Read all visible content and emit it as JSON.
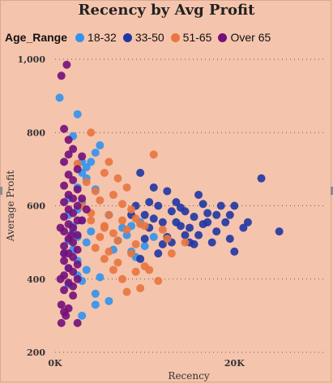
{
  "chart_data": {
    "type": "scatter",
    "title": "Recency by Avg Profit",
    "xlabel": "Recency",
    "ylabel": "Average Profit",
    "xlim": [
      0,
      30000
    ],
    "ylim": [
      200,
      1000
    ],
    "x_ticks": [
      {
        "value": 0,
        "label": "0K"
      },
      {
        "value": 20000,
        "label": "20K"
      }
    ],
    "y_ticks": [
      {
        "value": 200,
        "label": "200"
      },
      {
        "value": 400,
        "label": "400"
      },
      {
        "value": 600,
        "label": "600"
      },
      {
        "value": 800,
        "label": "800"
      },
      {
        "value": 1000,
        "label": "1,000"
      }
    ],
    "grid": "horizontal dotted",
    "legend_title": "Age_Range",
    "legend_position": "top-left",
    "series": [
      {
        "name": "18-32",
        "color": "#2f93f0",
        "points": [
          [
            500,
            895
          ],
          [
            2500,
            850
          ],
          [
            2000,
            790
          ],
          [
            5000,
            765
          ],
          [
            4500,
            745
          ],
          [
            4000,
            720
          ],
          [
            3500,
            705
          ],
          [
            3000,
            690
          ],
          [
            3500,
            675
          ],
          [
            2500,
            650
          ],
          [
            4500,
            645
          ],
          [
            1500,
            620
          ],
          [
            3000,
            610
          ],
          [
            2500,
            590
          ],
          [
            1500,
            575
          ],
          [
            3000,
            560
          ],
          [
            2000,
            545
          ],
          [
            4000,
            530
          ],
          [
            2500,
            515
          ],
          [
            3500,
            500
          ],
          [
            2000,
            480
          ],
          [
            1000,
            470
          ],
          [
            2500,
            450
          ],
          [
            1500,
            430
          ],
          [
            3500,
            425
          ],
          [
            2500,
            410
          ],
          [
            3000,
            395
          ],
          [
            1500,
            385
          ],
          [
            4500,
            360
          ],
          [
            5000,
            405
          ],
          [
            3000,
            300
          ],
          [
            4500,
            330
          ],
          [
            6000,
            340
          ],
          [
            7500,
            540
          ],
          [
            8500,
            545
          ],
          [
            9500,
            555
          ],
          [
            8000,
            520
          ],
          [
            7000,
            505
          ],
          [
            6500,
            480
          ],
          [
            8500,
            475
          ],
          [
            10000,
            490
          ],
          [
            9000,
            460
          ],
          [
            11000,
            515
          ],
          [
            6000,
            575
          ],
          [
            3000,
            720
          ],
          [
            2000,
            530
          ],
          [
            1500,
            505
          ]
        ]
      },
      {
        "name": "33-50",
        "color": "#1f36a3",
        "points": [
          [
            23000,
            675
          ],
          [
            25000,
            530
          ],
          [
            21500,
            555
          ],
          [
            20000,
            600
          ],
          [
            21000,
            540
          ],
          [
            19500,
            575
          ],
          [
            18500,
            600
          ],
          [
            19500,
            510
          ],
          [
            20000,
            475
          ],
          [
            18000,
            530
          ],
          [
            17000,
            580
          ],
          [
            16500,
            605
          ],
          [
            16000,
            630
          ],
          [
            15500,
            570
          ],
          [
            15000,
            540
          ],
          [
            14500,
            520
          ],
          [
            14000,
            595
          ],
          [
            13500,
            610
          ],
          [
            13000,
            585
          ],
          [
            12500,
            640
          ],
          [
            12000,
            555
          ],
          [
            11500,
            600
          ],
          [
            11000,
            565
          ],
          [
            10500,
            540
          ],
          [
            10000,
            510
          ],
          [
            9500,
            690
          ],
          [
            10500,
            610
          ],
          [
            12000,
            495
          ],
          [
            13000,
            500
          ],
          [
            14000,
            545
          ],
          [
            15000,
            500
          ],
          [
            16000,
            520
          ],
          [
            17000,
            555
          ],
          [
            18000,
            575
          ],
          [
            11000,
            650
          ],
          [
            10000,
            575
          ],
          [
            9000,
            600
          ],
          [
            8500,
            575
          ],
          [
            12500,
            515
          ],
          [
            11500,
            470
          ],
          [
            9500,
            455
          ],
          [
            13500,
            555
          ],
          [
            14500,
            585
          ],
          [
            15500,
            495
          ],
          [
            17500,
            500
          ],
          [
            16500,
            550
          ],
          [
            19000,
            555
          ]
        ]
      },
      {
        "name": "51-65",
        "color": "#e8753f",
        "points": [
          [
            4000,
            800
          ],
          [
            11000,
            740
          ],
          [
            6000,
            720
          ],
          [
            2500,
            715
          ],
          [
            5500,
            690
          ],
          [
            7000,
            675
          ],
          [
            3500,
            665
          ],
          [
            8000,
            650
          ],
          [
            4500,
            640
          ],
          [
            6500,
            630
          ],
          [
            5000,
            615
          ],
          [
            7500,
            605
          ],
          [
            3000,
            600
          ],
          [
            8500,
            590
          ],
          [
            4000,
            580
          ],
          [
            6000,
            575
          ],
          [
            7500,
            560
          ],
          [
            9500,
            550
          ],
          [
            5500,
            545
          ],
          [
            8000,
            535
          ],
          [
            6500,
            525
          ],
          [
            5000,
            515
          ],
          [
            7000,
            505
          ],
          [
            9000,
            495
          ],
          [
            4500,
            485
          ],
          [
            6000,
            475
          ],
          [
            8500,
            470
          ],
          [
            5500,
            455
          ],
          [
            7000,
            445
          ],
          [
            10000,
            435
          ],
          [
            6500,
            425
          ],
          [
            9000,
            420
          ],
          [
            7500,
            400
          ],
          [
            8000,
            365
          ],
          [
            9500,
            375
          ],
          [
            10500,
            425
          ],
          [
            11500,
            395
          ],
          [
            12500,
            510
          ],
          [
            12000,
            535
          ],
          [
            13000,
            470
          ],
          [
            14500,
            500
          ],
          [
            9000,
            565
          ],
          [
            10000,
            545
          ],
          [
            4000,
            560
          ],
          [
            5500,
            540
          ]
        ]
      },
      {
        "name": "Over 65",
        "color": "#74107a",
        "points": [
          [
            1300,
            985
          ],
          [
            700,
            955
          ],
          [
            1000,
            810
          ],
          [
            1500,
            780
          ],
          [
            2000,
            755
          ],
          [
            1500,
            740
          ],
          [
            3000,
            735
          ],
          [
            1000,
            720
          ],
          [
            2500,
            700
          ],
          [
            1500,
            685
          ],
          [
            2000,
            670
          ],
          [
            1000,
            655
          ],
          [
            2500,
            645
          ],
          [
            1500,
            630
          ],
          [
            2000,
            620
          ],
          [
            1000,
            610
          ],
          [
            2500,
            600
          ],
          [
            1500,
            590
          ],
          [
            2000,
            580
          ],
          [
            1000,
            570
          ],
          [
            2500,
            560
          ],
          [
            1500,
            550
          ],
          [
            2000,
            540
          ],
          [
            1000,
            530
          ],
          [
            2500,
            520
          ],
          [
            1500,
            510
          ],
          [
            2000,
            500
          ],
          [
            1000,
            490
          ],
          [
            2500,
            480
          ],
          [
            1500,
            470
          ],
          [
            2000,
            460
          ],
          [
            1000,
            450
          ],
          [
            2500,
            440
          ],
          [
            1500,
            430
          ],
          [
            2000,
            420
          ],
          [
            1000,
            410
          ],
          [
            2500,
            400
          ],
          [
            1500,
            390
          ],
          [
            2000,
            380
          ],
          [
            1000,
            370
          ],
          [
            2000,
            355
          ],
          [
            700,
            330
          ],
          [
            1500,
            320
          ],
          [
            1000,
            310
          ],
          [
            700,
            280
          ],
          [
            2500,
            280
          ],
          [
            1200,
            300
          ],
          [
            3000,
            620
          ],
          [
            3500,
            590
          ],
          [
            3000,
            560
          ],
          [
            1800,
            520
          ],
          [
            600,
            540
          ],
          [
            600,
            400
          ],
          [
            1000,
            470
          ]
        ]
      }
    ]
  }
}
